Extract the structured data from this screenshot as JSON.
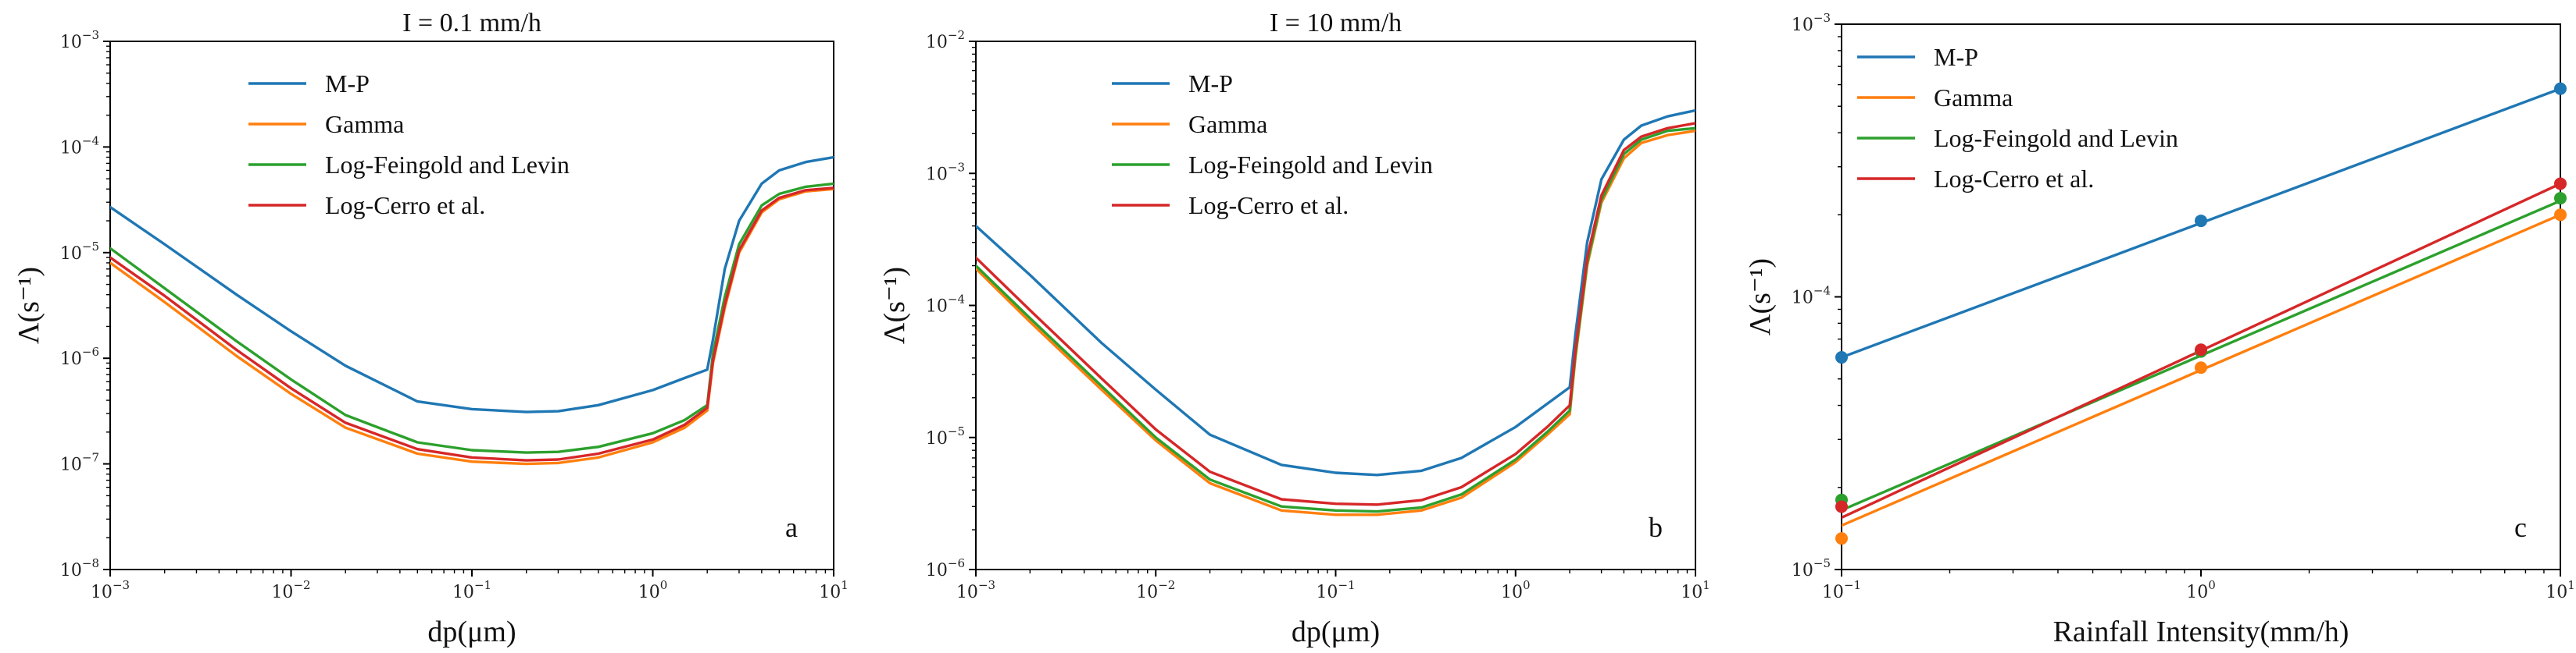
{
  "figure": {
    "colors": {
      "M-P": "#1f77b4",
      "Gamma": "#ff7f0e",
      "Log-Feingold and Levin": "#2ca02c",
      "Log-Cerro et al.": "#d62728"
    }
  },
  "chart_data": [
    {
      "id": "a",
      "type": "line",
      "title": "I = 0.1 mm/h",
      "panel_label": "a",
      "xlabel": "dp(μm)",
      "ylabel": "Λ(s⁻¹)",
      "xscale": "log",
      "yscale": "log",
      "xlim": [
        0.001,
        10
      ],
      "ylim": [
        1e-08,
        0.001
      ],
      "x_ticks": [
        {
          "base": "10",
          "exp": "−3"
        },
        {
          "base": "10",
          "exp": "−2"
        },
        {
          "base": "10",
          "exp": "−1"
        },
        {
          "base": "10",
          "exp": "0"
        },
        {
          "base": "10",
          "exp": "1"
        }
      ],
      "y_ticks": [
        {
          "base": "10",
          "exp": "−8"
        },
        {
          "base": "10",
          "exp": "−7"
        },
        {
          "base": "10",
          "exp": "−6"
        },
        {
          "base": "10",
          "exp": "−5"
        },
        {
          "base": "10",
          "exp": "−4"
        },
        {
          "base": "10",
          "exp": "−3"
        }
      ],
      "legend": [
        "M-P",
        "Gamma",
        "Log-Feingold and Levin",
        "Log-Cerro et al."
      ],
      "legend_position": "top-left",
      "x": [
        0.001,
        0.002,
        0.005,
        0.01,
        0.02,
        0.05,
        0.1,
        0.2,
        0.3,
        0.5,
        1,
        1.5,
        2,
        2.15,
        2.5,
        3,
        4,
        5,
        7,
        10
      ],
      "series": [
        {
          "name": "M-P",
          "values": [
            2.7e-05,
            1.2e-05,
            4e-06,
            1.8e-06,
            8.5e-07,
            3.9e-07,
            3.3e-07,
            3.1e-07,
            3.15e-07,
            3.6e-07,
            5e-07,
            6.5e-07,
            7.8e-07,
            1.5e-06,
            7e-06,
            2e-05,
            4.5e-05,
            6e-05,
            7.2e-05,
            8e-05
          ]
        },
        {
          "name": "Gamma",
          "values": [
            8e-06,
            3.4e-06,
            1.05e-06,
            4.6e-07,
            2.2e-07,
            1.25e-07,
            1.05e-07,
            1e-07,
            1.02e-07,
            1.15e-07,
            1.6e-07,
            2.2e-07,
            3.2e-07,
            9e-07,
            3e-06,
            1e-05,
            2.4e-05,
            3.2e-05,
            3.8e-05,
            4e-05
          ]
        },
        {
          "name": "Log-Feingold and Levin",
          "values": [
            1.1e-05,
            4.6e-06,
            1.45e-06,
            6.3e-07,
            2.9e-07,
            1.6e-07,
            1.35e-07,
            1.28e-07,
            1.3e-07,
            1.45e-07,
            1.95e-07,
            2.6e-07,
            3.6e-07,
            1.1e-06,
            3.8e-06,
            1.2e-05,
            2.8e-05,
            3.6e-05,
            4.2e-05,
            4.5e-05
          ]
        },
        {
          "name": "Log-Cerro et al.",
          "values": [
            9e-06,
            3.9e-06,
            1.2e-06,
            5.2e-07,
            2.45e-07,
            1.38e-07,
            1.15e-07,
            1.08e-07,
            1.1e-07,
            1.25e-07,
            1.7e-07,
            2.35e-07,
            3.4e-07,
            9.5e-07,
            3.2e-06,
            1.05e-05,
            2.5e-05,
            3.3e-05,
            3.9e-05,
            4.1e-05
          ]
        }
      ]
    },
    {
      "id": "b",
      "type": "line",
      "title": "I = 10 mm/h",
      "panel_label": "b",
      "xlabel": "dp(μm)",
      "ylabel": "Λ(s⁻¹)",
      "xscale": "log",
      "yscale": "log",
      "xlim": [
        0.001,
        10
      ],
      "ylim": [
        1e-06,
        0.01
      ],
      "x_ticks": [
        {
          "base": "10",
          "exp": "−3"
        },
        {
          "base": "10",
          "exp": "−2"
        },
        {
          "base": "10",
          "exp": "−1"
        },
        {
          "base": "10",
          "exp": "0"
        },
        {
          "base": "10",
          "exp": "1"
        }
      ],
      "y_ticks": [
        {
          "base": "10",
          "exp": "−6"
        },
        {
          "base": "10",
          "exp": "−5"
        },
        {
          "base": "10",
          "exp": "−4"
        },
        {
          "base": "10",
          "exp": "−3"
        },
        {
          "base": "10",
          "exp": "−2"
        }
      ],
      "legend": [
        "M-P",
        "Gamma",
        "Log-Feingold and Levin",
        "Log-Cerro et al."
      ],
      "legend_position": "top-left",
      "x": [
        0.001,
        0.002,
        0.005,
        0.01,
        0.02,
        0.05,
        0.1,
        0.17,
        0.3,
        0.5,
        1,
        1.5,
        2,
        2.15,
        2.5,
        3,
        4,
        5,
        7,
        10
      ],
      "series": [
        {
          "name": "M-P",
          "values": [
            0.0004,
            0.00017,
            5.2e-05,
            2.3e-05,
            1.05e-05,
            6.2e-06,
            5.4e-06,
            5.2e-06,
            5.6e-06,
            7e-06,
            1.2e-05,
            1.8e-05,
            2.4e-05,
            6e-05,
            0.0003,
            0.0009,
            0.0018,
            0.0023,
            0.0027,
            0.003
          ]
        },
        {
          "name": "Gamma",
          "values": [
            0.00019,
            7.5e-05,
            2.3e-05,
            9.5e-06,
            4.5e-06,
            2.8e-06,
            2.6e-06,
            2.6e-06,
            2.8e-06,
            3.5e-06,
            6.5e-06,
            1.05e-05,
            1.5e-05,
            4e-05,
            0.0002,
            0.0006,
            0.0013,
            0.0017,
            0.00195,
            0.0021
          ]
        },
        {
          "name": "Log-Feingold and Levin",
          "values": [
            0.0002,
            8e-05,
            2.45e-05,
            1e-05,
            4.8e-06,
            3e-06,
            2.8e-06,
            2.75e-06,
            2.95e-06,
            3.7e-06,
            6.8e-06,
            1.1e-05,
            1.6e-05,
            4.2e-05,
            0.00021,
            0.00063,
            0.0014,
            0.0018,
            0.0021,
            0.0022
          ]
        },
        {
          "name": "Log-Cerro et al.",
          "values": [
            0.00023,
            9.2e-05,
            2.8e-05,
            1.15e-05,
            5.5e-06,
            3.4e-06,
            3.15e-06,
            3.1e-06,
            3.35e-06,
            4.2e-06,
            7.5e-06,
            1.2e-05,
            1.75e-05,
            4.6e-05,
            0.00023,
            0.00068,
            0.0015,
            0.0019,
            0.0022,
            0.0024
          ]
        }
      ]
    },
    {
      "id": "c",
      "type": "line",
      "title": "",
      "panel_label": "c",
      "xlabel": "Rainfall Intensity(mm/h)",
      "ylabel": "Λ(s⁻¹)",
      "xscale": "log",
      "yscale": "log",
      "xlim": [
        0.1,
        10
      ],
      "ylim": [
        1e-05,
        0.001
      ],
      "x_ticks": [
        {
          "base": "10",
          "exp": "−1"
        },
        {
          "base": "10",
          "exp": "0"
        },
        {
          "base": "10",
          "exp": "1"
        }
      ],
      "y_ticks": [
        {
          "base": "10",
          "exp": "−5"
        },
        {
          "base": "10",
          "exp": "−4"
        },
        {
          "base": "10",
          "exp": "−3"
        }
      ],
      "legend": [
        "M-P",
        "Gamma",
        "Log-Feingold and Levin",
        "Log-Cerro et al."
      ],
      "legend_position": "top-left",
      "markers": true,
      "x": [
        0.1,
        1,
        10
      ],
      "series": [
        {
          "name": "M-P",
          "values": [
            6e-05,
            0.00019,
            0.00058
          ]
        },
        {
          "name": "Gamma",
          "values": [
            1.3e-05,
            5.5e-05,
            0.0002
          ]
        },
        {
          "name": "Log-Feingold and Levin",
          "values": [
            1.8e-05,
            6.3e-05,
            0.00023
          ]
        },
        {
          "name": "Log-Cerro et al.",
          "values": [
            1.7e-05,
            6.4e-05,
            0.00026
          ]
        }
      ],
      "fit_lines": [
        {
          "name": "M-P",
          "start": [
            0.1,
            6e-05
          ],
          "end": [
            10,
            0.00058
          ]
        },
        {
          "name": "Gamma",
          "start": [
            0.1,
            1.45e-05
          ],
          "end": [
            10,
            0.0002
          ]
        },
        {
          "name": "Log-Feingold and Levin",
          "start": [
            0.1,
            1.65e-05
          ],
          "end": [
            10,
            0.000225
          ]
        },
        {
          "name": "Log-Cerro et al.",
          "start": [
            0.1,
            1.55e-05
          ],
          "end": [
            10,
            0.00026
          ]
        }
      ]
    }
  ]
}
